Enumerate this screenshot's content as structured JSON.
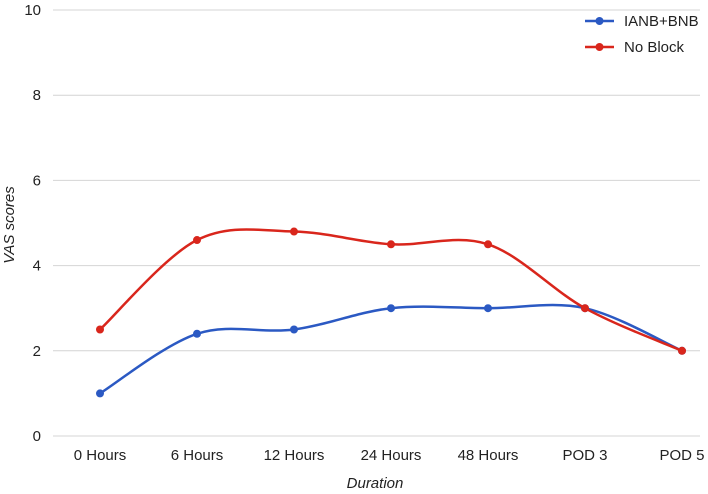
{
  "chart_data": {
    "type": "line",
    "title": "",
    "xlabel": "Duration",
    "ylabel": "VAS scores",
    "categories": [
      "0 Hours",
      "6 Hours",
      "12 Hours",
      "24 Hours",
      "48 Hours",
      "POD 3",
      "POD 5"
    ],
    "series": [
      {
        "name": "IANB+BNB",
        "color": "#2b59c3",
        "values": [
          1,
          2.4,
          2.5,
          3,
          3,
          3,
          2
        ]
      },
      {
        "name": "No Block",
        "color": "#d9261c",
        "values": [
          2.5,
          4.6,
          4.8,
          4.5,
          4.5,
          3,
          2
        ]
      }
    ],
    "ylim": [
      0,
      10
    ],
    "yticks": [
      0,
      2,
      4,
      6,
      8,
      10
    ],
    "grid": true,
    "grid_color": "#d4d4d4",
    "legend_position": "top-right",
    "smooth": true
  }
}
